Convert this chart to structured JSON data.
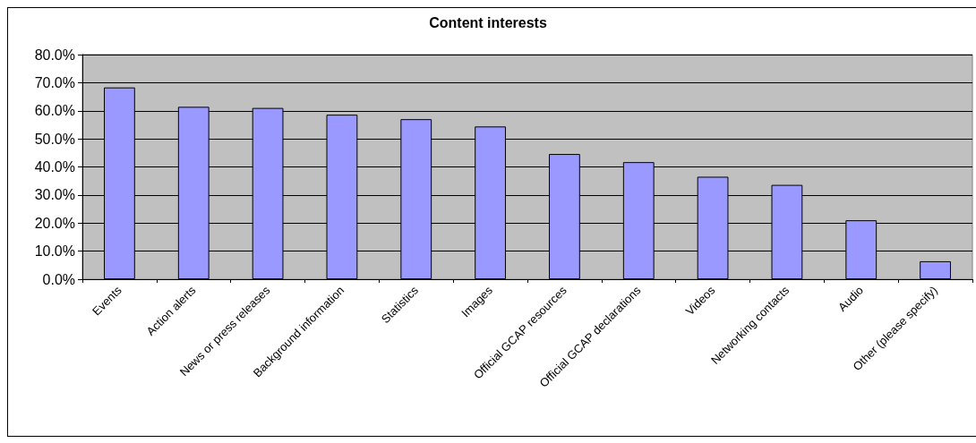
{
  "chart_data": {
    "type": "bar",
    "title": "Content interests",
    "categories": [
      "Events",
      "Action alerts",
      "News or press releases",
      "Background information",
      "Statistics",
      "Images",
      "Official GCAP resources",
      "Official GCAP declarations",
      "Videos",
      "Networking contacts",
      "Audio",
      "Other (please specify)"
    ],
    "values": [
      68.3,
      61.4,
      61.0,
      58.6,
      57.0,
      54.4,
      44.6,
      41.7,
      36.5,
      33.6,
      21.0,
      6.4
    ],
    "color": "#9999ff",
    "ylim": [
      0,
      80
    ],
    "yticks": [
      {
        "value": 0,
        "label": "0.0%"
      },
      {
        "value": 10,
        "label": "10.0%"
      },
      {
        "value": 20,
        "label": "20.0%"
      },
      {
        "value": 30,
        "label": "30.0%"
      },
      {
        "value": 40,
        "label": "40.0%"
      },
      {
        "value": 50,
        "label": "50.0%"
      },
      {
        "value": 60,
        "label": "60.0%"
      },
      {
        "value": 70,
        "label": "70.0%"
      },
      {
        "value": 80,
        "label": "80.0%"
      }
    ],
    "grid": "y"
  }
}
